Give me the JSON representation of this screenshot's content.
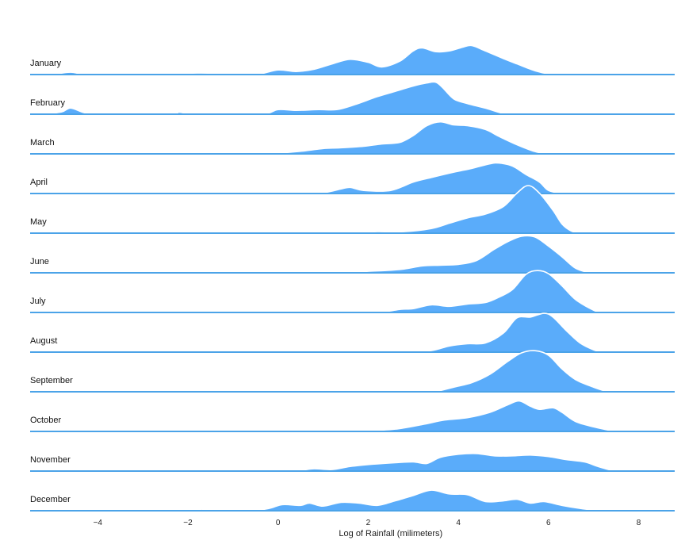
{
  "chart_data": {
    "type": "area",
    "subtype": "ridgeline",
    "title": "",
    "xlabel": "Log of Rainfall (milimeters)",
    "ylabel": "",
    "xlim": [
      -5.5,
      8.8
    ],
    "x_ticks": [
      -4,
      -2,
      0,
      2,
      4,
      6,
      8
    ],
    "x_tick_labels": [
      "−4",
      "−2",
      "0",
      "2",
      "4",
      "6",
      "8"
    ],
    "grid": false,
    "colors": {
      "fill": "#5aacfa",
      "baseline": "#4ba3e8",
      "outline": "#ffffff"
    },
    "series": [
      {
        "name": "January",
        "points": [
          [
            -5,
            0
          ],
          [
            -4.6,
            0.06
          ],
          [
            -4.2,
            0
          ],
          [
            -3,
            0
          ],
          [
            -1.8,
            0.04
          ],
          [
            -1.2,
            0.02
          ],
          [
            -0.5,
            0
          ],
          [
            0,
            0.12
          ],
          [
            0.4,
            0.08
          ],
          [
            0.8,
            0.14
          ],
          [
            1.2,
            0.28
          ],
          [
            1.6,
            0.4
          ],
          [
            2,
            0.32
          ],
          [
            2.3,
            0.2
          ],
          [
            2.7,
            0.35
          ],
          [
            3,
            0.62
          ],
          [
            3.2,
            0.7
          ],
          [
            3.5,
            0.6
          ],
          [
            3.8,
            0.62
          ],
          [
            4.1,
            0.72
          ],
          [
            4.3,
            0.76
          ],
          [
            4.6,
            0.62
          ],
          [
            5,
            0.42
          ],
          [
            5.3,
            0.28
          ],
          [
            5.7,
            0.1
          ],
          [
            6,
            0.02
          ],
          [
            6.3,
            0
          ]
        ]
      },
      {
        "name": "February",
        "points": [
          [
            -5.2,
            0
          ],
          [
            -4.8,
            0.06
          ],
          [
            -4.6,
            0.16
          ],
          [
            -4.3,
            0.04
          ],
          [
            -4,
            0
          ],
          [
            -2.4,
            0
          ],
          [
            -2.2,
            0.05
          ],
          [
            -1.8,
            0
          ],
          [
            -0.4,
            0
          ],
          [
            0,
            0.12
          ],
          [
            0.4,
            0.1
          ],
          [
            0.9,
            0.12
          ],
          [
            1.3,
            0.12
          ],
          [
            1.7,
            0.25
          ],
          [
            2.2,
            0.46
          ],
          [
            2.6,
            0.6
          ],
          [
            3,
            0.74
          ],
          [
            3.3,
            0.82
          ],
          [
            3.5,
            0.84
          ],
          [
            3.65,
            0.7
          ],
          [
            3.9,
            0.4
          ],
          [
            4.2,
            0.28
          ],
          [
            4.6,
            0.16
          ],
          [
            5,
            0.02
          ],
          [
            5.3,
            0
          ]
        ]
      },
      {
        "name": "March",
        "points": [
          [
            -0.6,
            0
          ],
          [
            0,
            0.02
          ],
          [
            0.6,
            0.08
          ],
          [
            1,
            0.14
          ],
          [
            1.4,
            0.16
          ],
          [
            1.9,
            0.2
          ],
          [
            2.3,
            0.26
          ],
          [
            2.7,
            0.3
          ],
          [
            3,
            0.48
          ],
          [
            3.3,
            0.74
          ],
          [
            3.6,
            0.84
          ],
          [
            3.9,
            0.76
          ],
          [
            4.2,
            0.74
          ],
          [
            4.6,
            0.64
          ],
          [
            4.9,
            0.46
          ],
          [
            5.3,
            0.24
          ],
          [
            5.7,
            0.06
          ],
          [
            6,
            0
          ]
        ]
      },
      {
        "name": "April",
        "points": [
          [
            0.4,
            0
          ],
          [
            1,
            0.02
          ],
          [
            1.4,
            0.12
          ],
          [
            1.6,
            0.16
          ],
          [
            1.9,
            0.08
          ],
          [
            2.5,
            0.08
          ],
          [
            3,
            0.3
          ],
          [
            3.4,
            0.42
          ],
          [
            3.9,
            0.56
          ],
          [
            4.3,
            0.66
          ],
          [
            4.7,
            0.78
          ],
          [
            4.9,
            0.8
          ],
          [
            5.2,
            0.72
          ],
          [
            5.5,
            0.5
          ],
          [
            5.8,
            0.3
          ],
          [
            6,
            0.08
          ],
          [
            6.3,
            0
          ]
        ]
      },
      {
        "name": "May",
        "points": [
          [
            1.4,
            0
          ],
          [
            1.8,
            0.02
          ],
          [
            2.2,
            0.04
          ],
          [
            2.8,
            0.04
          ],
          [
            3.4,
            0.12
          ],
          [
            3.8,
            0.26
          ],
          [
            4.2,
            0.4
          ],
          [
            4.6,
            0.5
          ],
          [
            5,
            0.7
          ],
          [
            5.3,
            1.05
          ],
          [
            5.55,
            1.25
          ],
          [
            5.8,
            1.05
          ],
          [
            6.1,
            0.6
          ],
          [
            6.3,
            0.24
          ],
          [
            6.5,
            0.06
          ],
          [
            6.7,
            0
          ]
        ]
      },
      {
        "name": "June",
        "points": [
          [
            1.6,
            0
          ],
          [
            2,
            0.04
          ],
          [
            2.4,
            0.06
          ],
          [
            2.8,
            0.1
          ],
          [
            3.2,
            0.18
          ],
          [
            3.6,
            0.2
          ],
          [
            4,
            0.22
          ],
          [
            4.4,
            0.32
          ],
          [
            4.8,
            0.62
          ],
          [
            5.1,
            0.82
          ],
          [
            5.4,
            0.96
          ],
          [
            5.7,
            0.94
          ],
          [
            6,
            0.7
          ],
          [
            6.3,
            0.42
          ],
          [
            6.6,
            0.12
          ],
          [
            6.9,
            0
          ]
        ]
      },
      {
        "name": "July",
        "points": [
          [
            2.3,
            0
          ],
          [
            2.7,
            0.08
          ],
          [
            3,
            0.1
          ],
          [
            3.4,
            0.2
          ],
          [
            3.8,
            0.16
          ],
          [
            4.2,
            0.22
          ],
          [
            4.6,
            0.26
          ],
          [
            4.9,
            0.4
          ],
          [
            5.2,
            0.6
          ],
          [
            5.5,
            1.0
          ],
          [
            5.75,
            1.1
          ],
          [
            6,
            1.02
          ],
          [
            6.3,
            0.7
          ],
          [
            6.6,
            0.34
          ],
          [
            7,
            0.06
          ],
          [
            7.2,
            0
          ]
        ]
      },
      {
        "name": "August",
        "points": [
          [
            2.8,
            0
          ],
          [
            3.4,
            0.04
          ],
          [
            3.8,
            0.16
          ],
          [
            4.2,
            0.22
          ],
          [
            4.6,
            0.24
          ],
          [
            5,
            0.5
          ],
          [
            5.3,
            0.9
          ],
          [
            5.6,
            0.92
          ],
          [
            5.9,
            1.02
          ],
          [
            6.1,
            0.92
          ],
          [
            6.4,
            0.56
          ],
          [
            6.7,
            0.24
          ],
          [
            7,
            0.06
          ],
          [
            7.2,
            0
          ]
        ]
      },
      {
        "name": "September",
        "points": [
          [
            3.5,
            0
          ],
          [
            3.9,
            0.12
          ],
          [
            4.3,
            0.24
          ],
          [
            4.7,
            0.46
          ],
          [
            5.1,
            0.8
          ],
          [
            5.4,
            1.02
          ],
          [
            5.7,
            1.08
          ],
          [
            6,
            0.96
          ],
          [
            6.3,
            0.6
          ],
          [
            6.6,
            0.32
          ],
          [
            7,
            0.12
          ],
          [
            7.3,
            0
          ]
        ]
      },
      {
        "name": "October",
        "points": [
          [
            1.4,
            0
          ],
          [
            2,
            0.02
          ],
          [
            2.6,
            0.06
          ],
          [
            3.2,
            0.18
          ],
          [
            3.7,
            0.3
          ],
          [
            4.2,
            0.36
          ],
          [
            4.7,
            0.5
          ],
          [
            5.1,
            0.7
          ],
          [
            5.35,
            0.8
          ],
          [
            5.6,
            0.66
          ],
          [
            5.8,
            0.58
          ],
          [
            6.1,
            0.62
          ],
          [
            6.3,
            0.5
          ],
          [
            6.6,
            0.26
          ],
          [
            7,
            0.12
          ],
          [
            7.4,
            0.02
          ],
          [
            7.6,
            0
          ]
        ]
      },
      {
        "name": "November",
        "points": [
          [
            0,
            0
          ],
          [
            0.5,
            0.02
          ],
          [
            0.8,
            0.06
          ],
          [
            1.2,
            0.04
          ],
          [
            1.6,
            0.12
          ],
          [
            2.1,
            0.18
          ],
          [
            2.6,
            0.22
          ],
          [
            3,
            0.24
          ],
          [
            3.3,
            0.2
          ],
          [
            3.6,
            0.36
          ],
          [
            4,
            0.44
          ],
          [
            4.4,
            0.46
          ],
          [
            4.8,
            0.4
          ],
          [
            5.2,
            0.4
          ],
          [
            5.6,
            0.42
          ],
          [
            6,
            0.38
          ],
          [
            6.4,
            0.3
          ],
          [
            6.8,
            0.24
          ],
          [
            7.1,
            0.12
          ],
          [
            7.4,
            0.02
          ],
          [
            7.6,
            0
          ]
        ]
      },
      {
        "name": "December",
        "points": [
          [
            -5,
            0
          ],
          [
            -4.6,
            0.02
          ],
          [
            -2,
            0
          ],
          [
            -1.7,
            0.04
          ],
          [
            -1.3,
            0
          ],
          [
            -0.6,
            0
          ],
          [
            -0.2,
            0.06
          ],
          [
            0.1,
            0.16
          ],
          [
            0.5,
            0.14
          ],
          [
            0.7,
            0.2
          ],
          [
            1,
            0.12
          ],
          [
            1.4,
            0.22
          ],
          [
            1.8,
            0.2
          ],
          [
            2.2,
            0.14
          ],
          [
            2.6,
            0.26
          ],
          [
            3,
            0.4
          ],
          [
            3.4,
            0.54
          ],
          [
            3.8,
            0.44
          ],
          [
            4.2,
            0.42
          ],
          [
            4.6,
            0.24
          ],
          [
            5,
            0.26
          ],
          [
            5.3,
            0.3
          ],
          [
            5.6,
            0.2
          ],
          [
            5.9,
            0.24
          ],
          [
            6.3,
            0.14
          ],
          [
            6.7,
            0.06
          ],
          [
            7.1,
            0
          ]
        ]
      }
    ]
  }
}
